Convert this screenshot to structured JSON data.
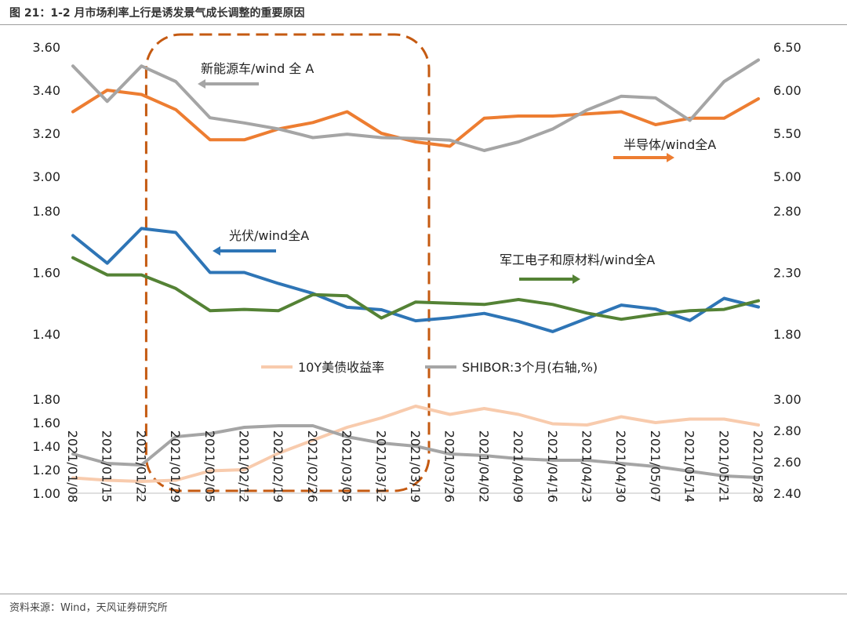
{
  "header": {
    "title": "图 21：1-2 月市场利率上行是诱发景气成长调整的重要原因"
  },
  "footer": {
    "source": "资料来源：Wind，天风证券研究所"
  },
  "colors": {
    "orange": "#ed7d31",
    "gray": "#a5a5a5",
    "blue": "#2e75b6",
    "green": "#548235",
    "peach": "#f8cbad",
    "highlight": "#c55a11"
  },
  "chart_data": {
    "type": "line",
    "title": "1-2 月市场利率上行是诱发景气成长调整的重要原因",
    "categories": [
      "2021/01/08",
      "2021/01/15",
      "2021/01/22",
      "2021/01/29",
      "2021/02/05",
      "2021/02/12",
      "2021/02/19",
      "2021/02/26",
      "2021/03/05",
      "2021/03/12",
      "2021/03/19",
      "2021/03/26",
      "2021/04/02",
      "2021/04/09",
      "2021/04/16",
      "2021/04/23",
      "2021/04/30",
      "2021/05/07",
      "2021/05/14",
      "2021/05/21",
      "2021/05/28"
    ],
    "panels": [
      {
        "id": "top",
        "left_axis": {
          "min": 3.0,
          "max": 3.6,
          "ticks": [
            "3.60",
            "3.40",
            "3.20",
            "3.00"
          ]
        },
        "right_axis": {
          "min": 5.0,
          "max": 6.5,
          "ticks": [
            "6.50",
            "6.00",
            "5.50",
            "5.00"
          ]
        },
        "series": [
          {
            "name": "半导体/wind全A",
            "axis": "left",
            "color": "#ed7d31",
            "values": [
              3.3,
              3.4,
              3.38,
              3.31,
              3.17,
              3.17,
              3.22,
              3.25,
              3.3,
              3.2,
              3.16,
              3.14,
              3.27,
              3.28,
              3.28,
              3.29,
              3.3,
              3.24,
              3.27,
              3.27,
              3.36
            ]
          },
          {
            "name": "新能源车/wind 全 A",
            "axis": "right",
            "color": "#a5a5a5",
            "values": [
              6.28,
              5.87,
              6.28,
              6.1,
              5.68,
              5.62,
              5.55,
              5.45,
              5.49,
              5.45,
              5.44,
              5.42,
              5.3,
              5.4,
              5.55,
              5.77,
              5.93,
              5.91,
              5.65,
              6.1,
              6.35
            ]
          }
        ],
        "annotations": [
          {
            "text": "新能源车/wind 全 A",
            "arrow": "left"
          },
          {
            "text": "半导体/wind全A",
            "arrow": "right"
          }
        ]
      },
      {
        "id": "middle",
        "left_axis": {
          "min": 1.4,
          "max": 1.8,
          "ticks": [
            "1.80",
            "1.60",
            "1.40"
          ]
        },
        "right_axis": {
          "min": 1.8,
          "max": 2.8,
          "ticks": [
            "2.80",
            "2.30",
            "1.80"
          ]
        },
        "series": [
          {
            "name": "光伏/wind全A",
            "axis": "left",
            "color": "#2e75b6",
            "values": [
              1.72,
              1.63,
              1.743,
              1.73,
              1.6,
              1.6,
              1.564,
              1.532,
              1.487,
              1.479,
              1.443,
              1.453,
              1.467,
              1.441,
              1.408,
              1.451,
              1.494,
              1.481,
              1.444,
              1.516,
              1.488
            ]
          },
          {
            "name": "军工电子和原材料/wind全A",
            "axis": "right",
            "color": "#548235",
            "values": [
              2.42,
              2.28,
              2.28,
              2.17,
              1.99,
              2.0,
              1.99,
              2.12,
              2.11,
              1.93,
              2.06,
              2.05,
              2.04,
              2.08,
              2.04,
              1.97,
              1.92,
              1.96,
              1.99,
              2.0,
              2.07
            ]
          }
        ],
        "annotations": [
          {
            "text": "光伏/wind全A",
            "arrow": "left"
          },
          {
            "text": "军工电子和原材料/wind全A",
            "arrow": "right"
          }
        ]
      },
      {
        "id": "bottom",
        "left_axis": {
          "min": 1.0,
          "max": 1.8,
          "ticks": [
            "1.80",
            "1.60",
            "1.40",
            "1.20",
            "1.00"
          ]
        },
        "right_axis": {
          "min": 2.4,
          "max": 3.0,
          "ticks": [
            "3.00",
            "2.80",
            "2.60",
            "2.40"
          ]
        },
        "series": [
          {
            "name": "10Y美债收益率",
            "axis": "left",
            "color": "#f8cbad",
            "values": [
              1.13,
              1.11,
              1.1,
              1.11,
              1.19,
              1.2,
              1.34,
              1.45,
              1.56,
              1.64,
              1.74,
              1.67,
              1.72,
              1.67,
              1.59,
              1.58,
              1.65,
              1.6,
              1.63,
              1.63,
              1.58
            ]
          },
          {
            "name": "SHIBOR:3个月(右轴,%)",
            "axis": "right",
            "color": "#a5a5a5",
            "values": [
              2.65,
              2.59,
              2.58,
              2.76,
              2.78,
              2.82,
              2.83,
              2.83,
              2.76,
              2.72,
              2.7,
              2.65,
              2.64,
              2.62,
              2.61,
              2.61,
              2.59,
              2.57,
              2.54,
              2.51,
              2.5
            ]
          }
        ],
        "legend": [
          "10Y美债收益率",
          "SHIBOR:3个月(右轴,%)"
        ]
      }
    ],
    "highlight": {
      "shape": "dashed-rounded-rectangle",
      "from": "2021/01/22",
      "to": "2021/03/19",
      "color": "#c55a11"
    }
  }
}
